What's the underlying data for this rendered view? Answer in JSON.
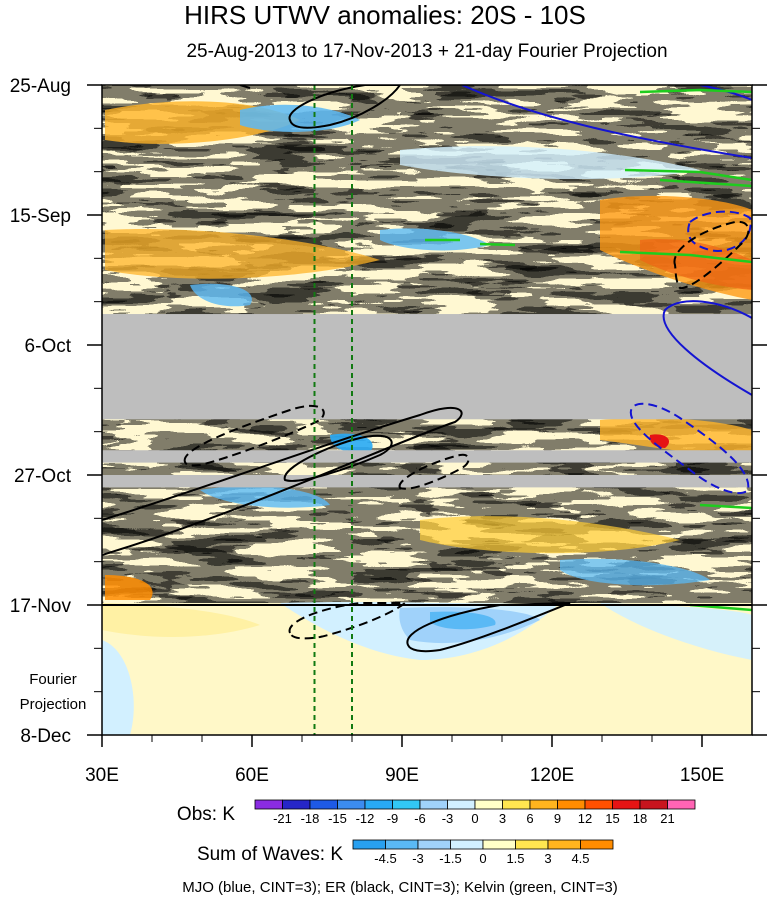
{
  "chart_data": {
    "type": "heatmap",
    "title": "HIRS UTWV anomalies: 20S - 10S",
    "subtitle": "25-Aug-2013 to 17-Nov-2013 + 21-day Fourier Projection",
    "x_axis": {
      "range": [
        30,
        160
      ],
      "ticks": [
        {
          "value": 30,
          "label": "30E"
        },
        {
          "value": 60,
          "label": "60E"
        },
        {
          "value": 90,
          "label": "90E"
        },
        {
          "value": 120,
          "label": "120E"
        },
        {
          "value": 150,
          "label": "150E"
        }
      ]
    },
    "y_axis": {
      "range_days": [
        0,
        105
      ],
      "ticks": [
        {
          "day": 0,
          "label": "25-Aug"
        },
        {
          "day": 21,
          "label": "15-Sep"
        },
        {
          "day": 42,
          "label": "6-Oct"
        },
        {
          "day": 63,
          "label": "27-Oct"
        },
        {
          "day": 84,
          "label": "17-Nov"
        },
        {
          "day": 105,
          "label": "8-Dec"
        }
      ],
      "observation_end_day": 84
    },
    "projection_label": [
      "Fourier",
      "Projection"
    ],
    "missing_data_bands_days": [
      [
        37,
        54
      ],
      [
        59,
        61
      ],
      [
        63,
        65
      ]
    ],
    "reference_longitudes": [
      72.5,
      80
    ],
    "obs_colorbar": {
      "label": "Obs: K",
      "levels": [
        -21,
        -18,
        -15,
        -12,
        -9,
        -6,
        -3,
        0,
        3,
        6,
        9,
        12,
        15,
        18,
        21
      ],
      "colors": [
        "#8a2be2",
        "#2626c8",
        "#1e5ae6",
        "#3c8cf0",
        "#28aaf5",
        "#32c8f5",
        "#a0d2fa",
        "#d2f0ff",
        "#ffffc8",
        "#ffe650",
        "#ffb41e",
        "#ff8c00",
        "#ff5000",
        "#e61414",
        "#c8141e",
        "#ff64b4"
      ]
    },
    "waves_colorbar": {
      "label": "Sum of Waves: K",
      "levels": [
        -4.5,
        -3,
        -1.5,
        0,
        1.5,
        3,
        4.5
      ],
      "colors": [
        "#28a0f0",
        "#5ab9f5",
        "#a0d2fa",
        "#d2f0ff",
        "#ffffc8",
        "#ffe650",
        "#ffb41e",
        "#ff8c00"
      ]
    },
    "contours": {
      "mjo": {
        "color": "#1414d2",
        "cint": 3
      },
      "er": {
        "color": "#000000",
        "cint": 3
      },
      "kelvin": {
        "color": "#1ecc1e",
        "cint": 3
      }
    },
    "footer": "MJO (blue, CINT=3); ER (black, CINT=3); Kelvin (green, CINT=3)"
  }
}
